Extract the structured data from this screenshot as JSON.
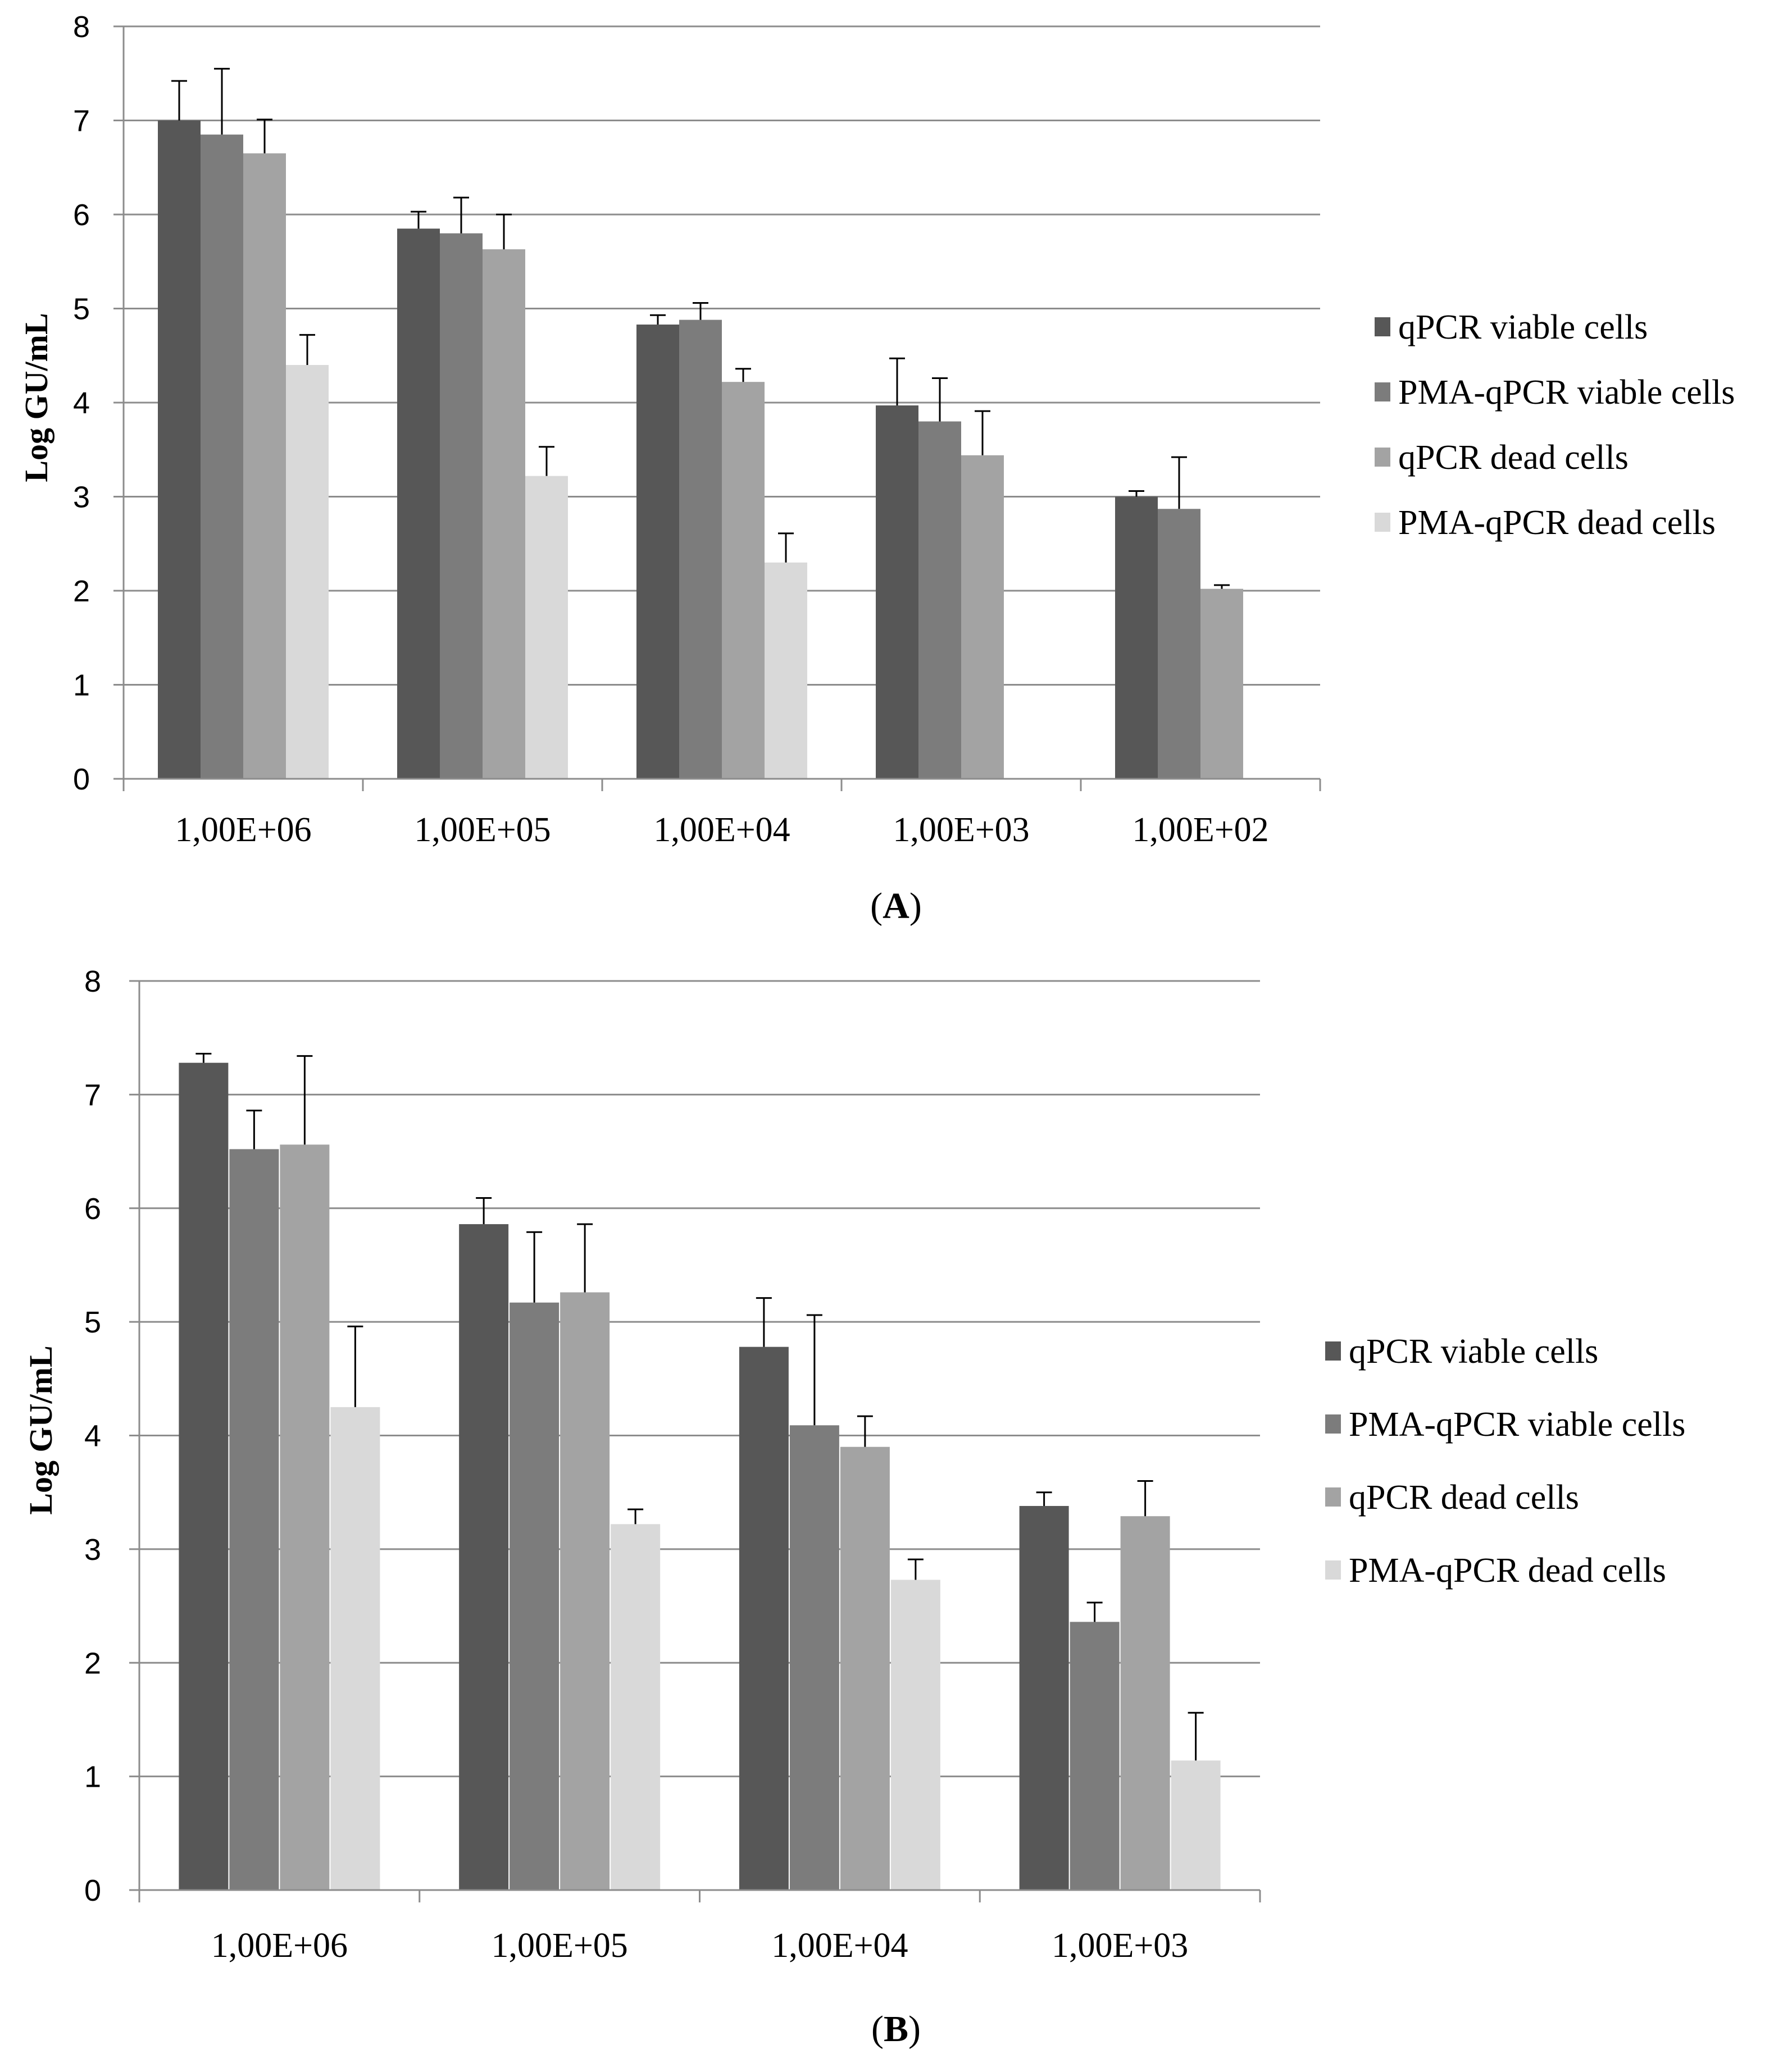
{
  "colors": [
    "#575757",
    "#7c7c7c",
    "#a3a3a3",
    "#d9d9d9"
  ],
  "chart_data": [
    {
      "type": "bar",
      "panel": "A",
      "ylabel": "Log GU/mL",
      "ylim": [
        0,
        8
      ],
      "yticks": [
        "0",
        "1",
        "2",
        "3",
        "4",
        "5",
        "6",
        "7",
        "8"
      ],
      "categories": [
        "1,00E+06",
        "1,00E+05",
        "1,00E+04",
        "1,00E+03",
        "1,00E+02"
      ],
      "series": [
        {
          "name": "qPCR viable cells",
          "values": [
            7.0,
            5.85,
            4.83,
            3.97,
            3.0
          ],
          "errors": [
            0.42,
            0.18,
            0.1,
            0.5,
            0.06
          ]
        },
        {
          "name": "PMA-qPCR viable cells",
          "values": [
            6.85,
            5.8,
            4.88,
            3.8,
            2.87
          ],
          "errors": [
            0.7,
            0.38,
            0.18,
            0.46,
            0.55
          ]
        },
        {
          "name": "qPCR dead cells",
          "values": [
            6.65,
            5.63,
            4.22,
            3.44,
            2.02
          ],
          "errors": [
            0.36,
            0.37,
            0.14,
            0.47,
            0.04
          ]
        },
        {
          "name": "PMA-qPCR dead cells",
          "values": [
            4.4,
            3.22,
            2.3,
            null,
            null
          ],
          "errors": [
            0.32,
            0.31,
            0.31,
            null,
            null
          ]
        }
      ]
    },
    {
      "type": "bar",
      "panel": "B",
      "ylabel": "Log GU/mL",
      "ylim": [
        0,
        8
      ],
      "yticks": [
        "0",
        "1",
        "2",
        "3",
        "4",
        "5",
        "6",
        "7",
        "8"
      ],
      "categories": [
        "1,00E+06",
        "1,00E+05",
        "1,00E+04",
        "1,00E+03"
      ],
      "series": [
        {
          "name": "qPCR viable cells",
          "values": [
            7.28,
            5.86,
            4.78,
            3.38
          ],
          "errors": [
            0.08,
            0.23,
            0.43,
            0.12
          ]
        },
        {
          "name": "PMA-qPCR viable cells",
          "values": [
            6.52,
            5.17,
            4.09,
            2.36
          ],
          "errors": [
            0.34,
            0.62,
            0.97,
            0.17
          ]
        },
        {
          "name": "qPCR dead cells",
          "values": [
            6.56,
            5.26,
            3.9,
            3.29
          ],
          "errors": [
            0.78,
            0.6,
            0.27,
            0.31
          ]
        },
        {
          "name": "PMA-qPCR dead cells",
          "values": [
            4.25,
            3.22,
            2.73,
            1.14
          ],
          "errors": [
            0.71,
            0.13,
            0.18,
            0.42
          ]
        }
      ]
    }
  ]
}
